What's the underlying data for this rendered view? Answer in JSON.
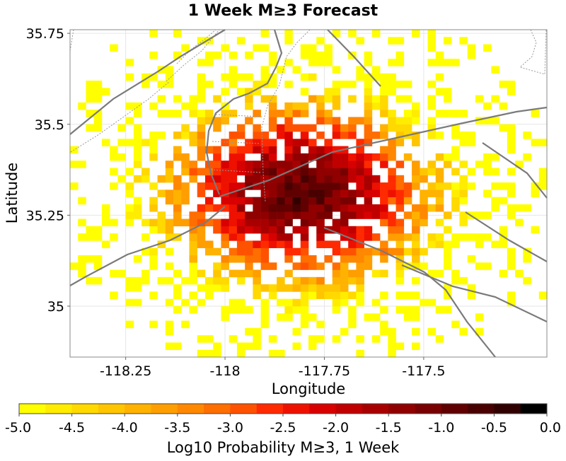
{
  "chart_data": {
    "type": "heatmap",
    "title": "1 Week M≥3 Forecast",
    "xlabel": "Longitude",
    "ylabel": "Latitude",
    "xlim": [
      -118.39,
      -117.19
    ],
    "ylim": [
      34.86,
      35.76
    ],
    "x_ticks": [
      {
        "value": -118.25,
        "label": "-118.25"
      },
      {
        "value": -118.0,
        "label": "-118"
      },
      {
        "value": -117.75,
        "label": "-117.75"
      },
      {
        "value": -117.5,
        "label": "-117.5"
      }
    ],
    "y_ticks": [
      {
        "value": 35.75,
        "label": "35.75"
      },
      {
        "value": 35.5,
        "label": "35.5"
      },
      {
        "value": 35.25,
        "label": "35.25"
      },
      {
        "value": 35.0,
        "label": "35"
      }
    ],
    "cell_size_deg": 0.02,
    "peak": {
      "lon": -117.81,
      "lat": 35.31,
      "log10_probability": -0.4
    },
    "colorbar": {
      "label": "Log10 Probability M≥3, 1 Week",
      "min": -5.0,
      "max": 0.0,
      "tick_labels": [
        "-5.0",
        "-4.5",
        "-4.0",
        "-3.5",
        "-3.0",
        "-2.5",
        "-2.0",
        "-1.5",
        "-1.0",
        "-0.5",
        "0.0"
      ],
      "colors": [
        "#ffff00",
        "#ffec00",
        "#ffd900",
        "#ffc500",
        "#ffb200",
        "#ff9e00",
        "#ff8800",
        "#ff6e00",
        "#ff5200",
        "#ff2a00",
        "#ee1100",
        "#d80000",
        "#c00000",
        "#a80000",
        "#900000",
        "#780000",
        "#600000",
        "#480000",
        "#300000",
        "#000000"
      ]
    }
  }
}
